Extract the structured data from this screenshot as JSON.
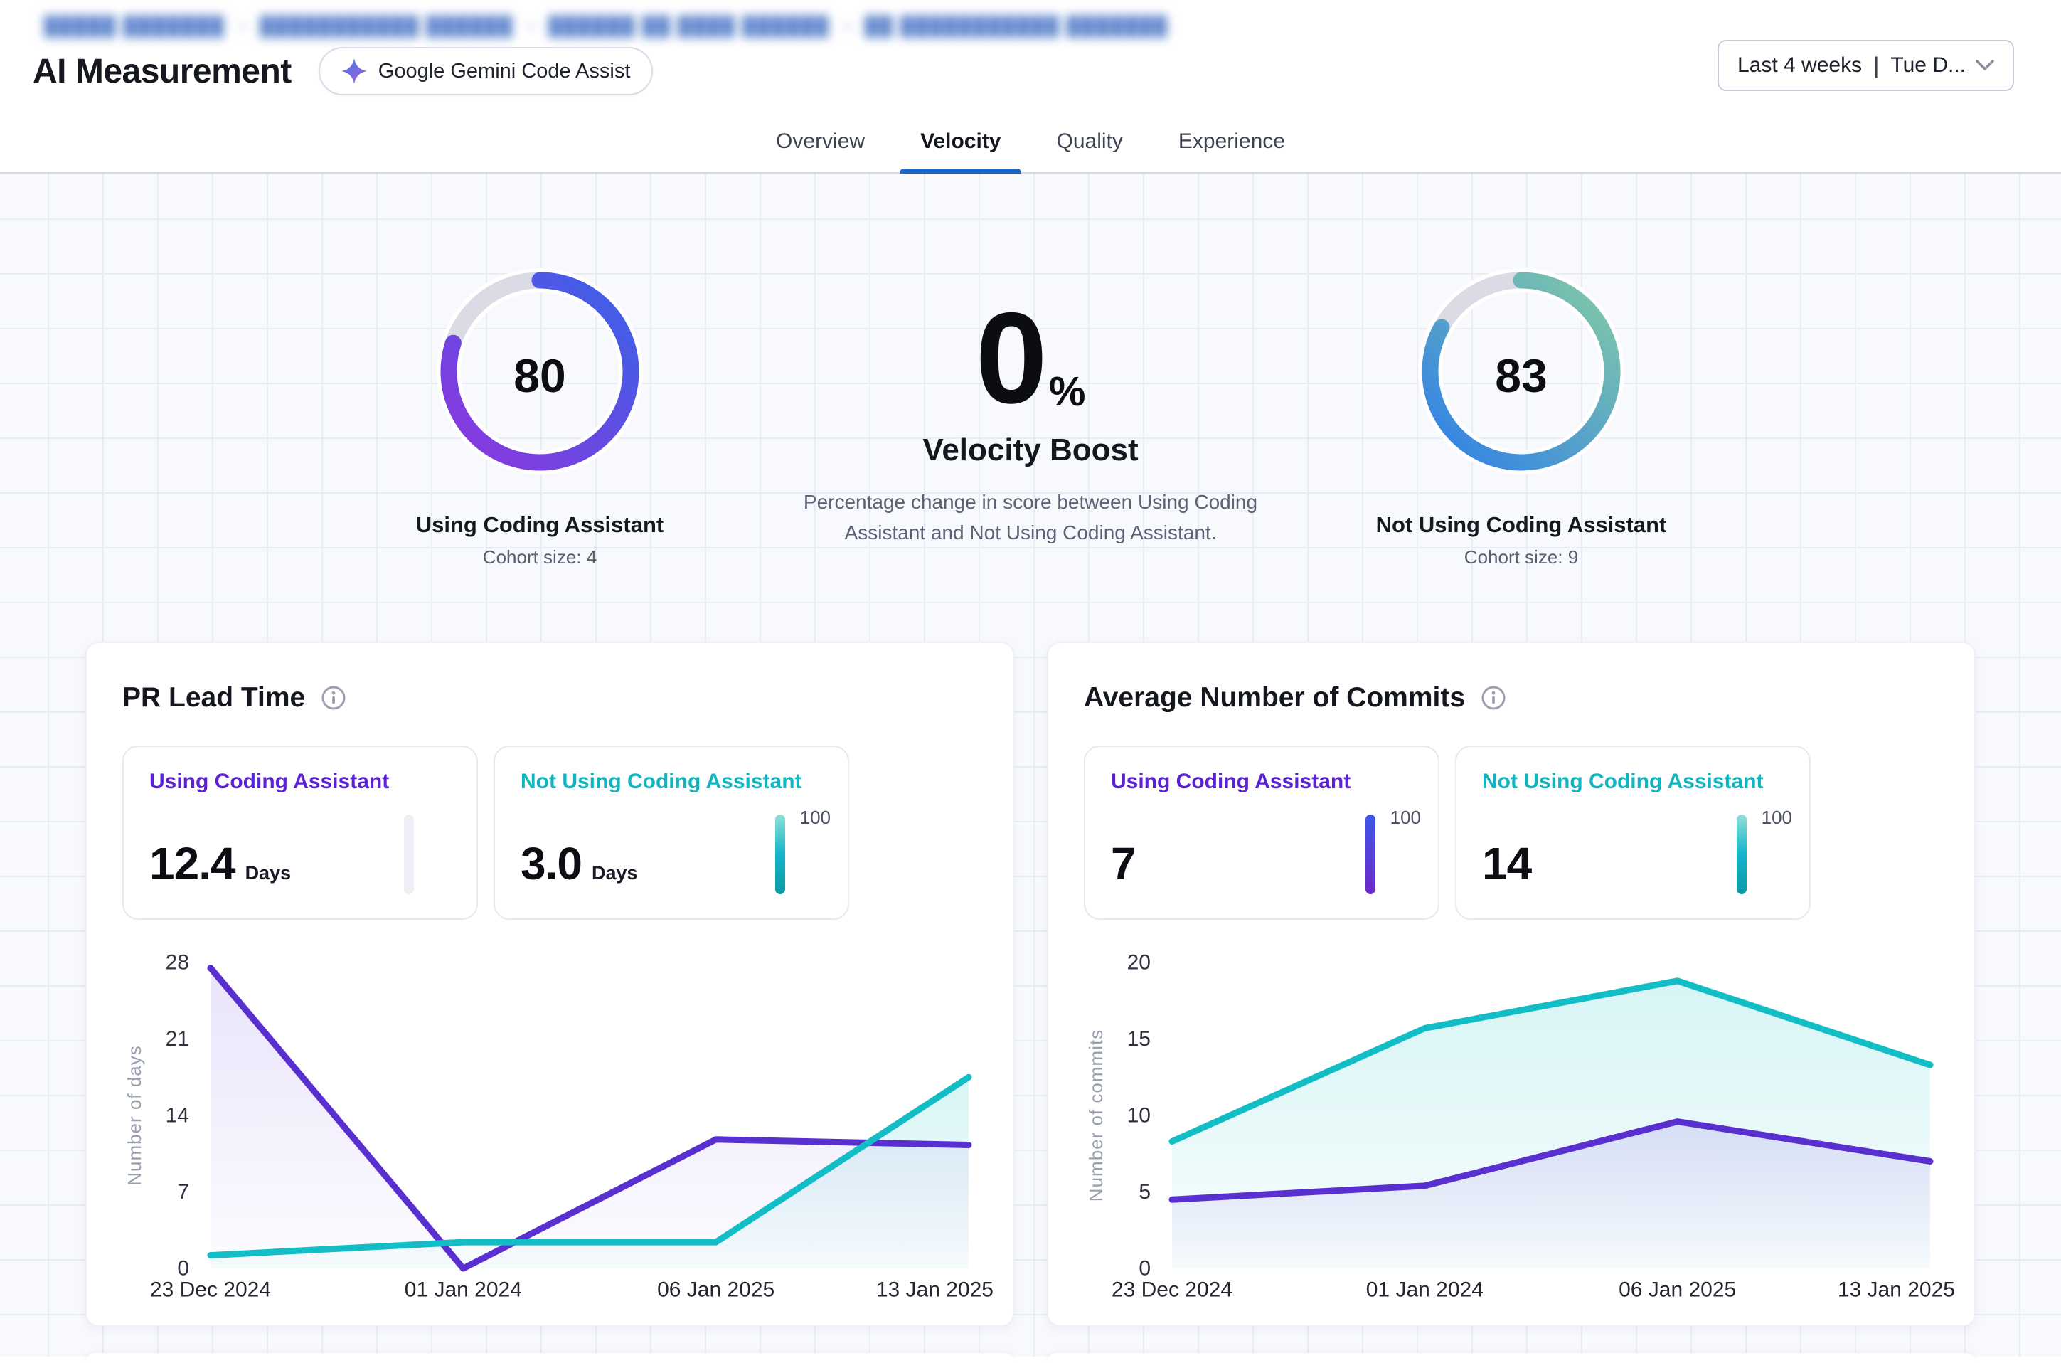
{
  "breadcrumb": {
    "segments": [
      "█████ ███████",
      "███████████ ██████",
      "██████ ██ ████ ██████",
      "██ ███████████ ███████"
    ],
    "separator": "›"
  },
  "header": {
    "title": "AI Measurement",
    "badge_label": "Google Gemini Code Assist",
    "date_filter": {
      "range": "Last 4 weeks",
      "separator": "|",
      "detail": "Tue D..."
    }
  },
  "tabs": [
    {
      "label": "Overview",
      "active": false
    },
    {
      "label": "Velocity",
      "active": true
    },
    {
      "label": "Quality",
      "active": false
    },
    {
      "label": "Experience",
      "active": false
    }
  ],
  "summary": {
    "left_gauge": {
      "value": "80",
      "label": "Using Coding Assistant",
      "cohort": "Cohort size: 4",
      "gradient": [
        "#8d35de",
        "#3a63e8"
      ],
      "track": "#dadbe4"
    },
    "boost": {
      "value": "0",
      "unit": "%",
      "title": "Velocity Boost",
      "description": "Percentage change in score between Using Coding Assistant and Not Using Coding Assistant."
    },
    "right_gauge": {
      "value": "83",
      "label": "Not Using Coding Assistant",
      "cohort": "Cohort size: 9",
      "gradient": [
        "#2e7ee9",
        "#84cba6"
      ],
      "track": "#dadbe4"
    }
  },
  "colors": {
    "accent_tab": "#1266cc",
    "purple_label": "#5b21d6",
    "teal_label": "#10b5bf",
    "purple_line": "#5a2fd0",
    "teal_line": "#13bdc6",
    "purple_fill": [
      "rgba(122,82,224,0.16)",
      "rgba(122,82,224,0.02)"
    ],
    "teal_fill": [
      "rgba(34,196,199,0.18)",
      "rgba(34,196,199,0.03)"
    ],
    "bar_purple": [
      "#3d57e8",
      "#6d28c9"
    ],
    "bar_teal": [
      "#8fe0d6",
      "#14b4cc",
      "#0d99a4"
    ],
    "bar_ghost": [
      "#edeef6",
      "#edeef6"
    ]
  },
  "cards": [
    {
      "title": "PR Lead Time",
      "tiles": [
        {
          "label": "Using Coding Assistant",
          "value": "12.4",
          "unit": "Days",
          "scale_label": "",
          "bar": "ghost",
          "label_color": "purple"
        },
        {
          "label": "Not Using Coding Assistant",
          "value": "3.0",
          "unit": "Days",
          "scale_label": "100",
          "bar": "teal",
          "label_color": "teal"
        }
      ],
      "chart_data": {
        "type": "area",
        "x": [
          "23 Dec 2024",
          "01 Jan 2024",
          "06 Jan 2025",
          "13 Jan 2025"
        ],
        "series": [
          {
            "name": "Using Coding Assistant",
            "values": [
              27.5,
              0,
              11.8,
              11.3
            ]
          },
          {
            "name": "Not Using Coding Assistant",
            "values": [
              1.2,
              2.4,
              2.4,
              17.5
            ]
          }
        ],
        "ylabel": "Number of days",
        "yticks": [
          0,
          7,
          14,
          21,
          28
        ],
        "ylim": [
          0,
          28
        ],
        "grid": false,
        "legend": "none"
      }
    },
    {
      "title": "Average Number of Commits",
      "tiles": [
        {
          "label": "Using Coding Assistant",
          "value": "7",
          "unit": "",
          "scale_label": "100",
          "bar": "purple",
          "label_color": "purple"
        },
        {
          "label": "Not Using Coding Assistant",
          "value": "14",
          "unit": "",
          "scale_label": "100",
          "bar": "teal",
          "label_color": "teal"
        }
      ],
      "chart_data": {
        "type": "area",
        "x": [
          "23 Dec 2024",
          "01 Jan 2024",
          "06 Jan 2025",
          "13 Jan 2025"
        ],
        "series": [
          {
            "name": "Using Coding Assistant",
            "values": [
              4.5,
              5.4,
              9.6,
              7.0
            ]
          },
          {
            "name": "Not Using Coding Assistant",
            "values": [
              8.3,
              15.7,
              18.8,
              13.3
            ]
          }
        ],
        "ylabel": "Number of commits",
        "yticks": [
          0,
          5,
          10,
          15,
          20
        ],
        "ylim": [
          0,
          20
        ],
        "grid": false,
        "legend": "none"
      }
    }
  ]
}
